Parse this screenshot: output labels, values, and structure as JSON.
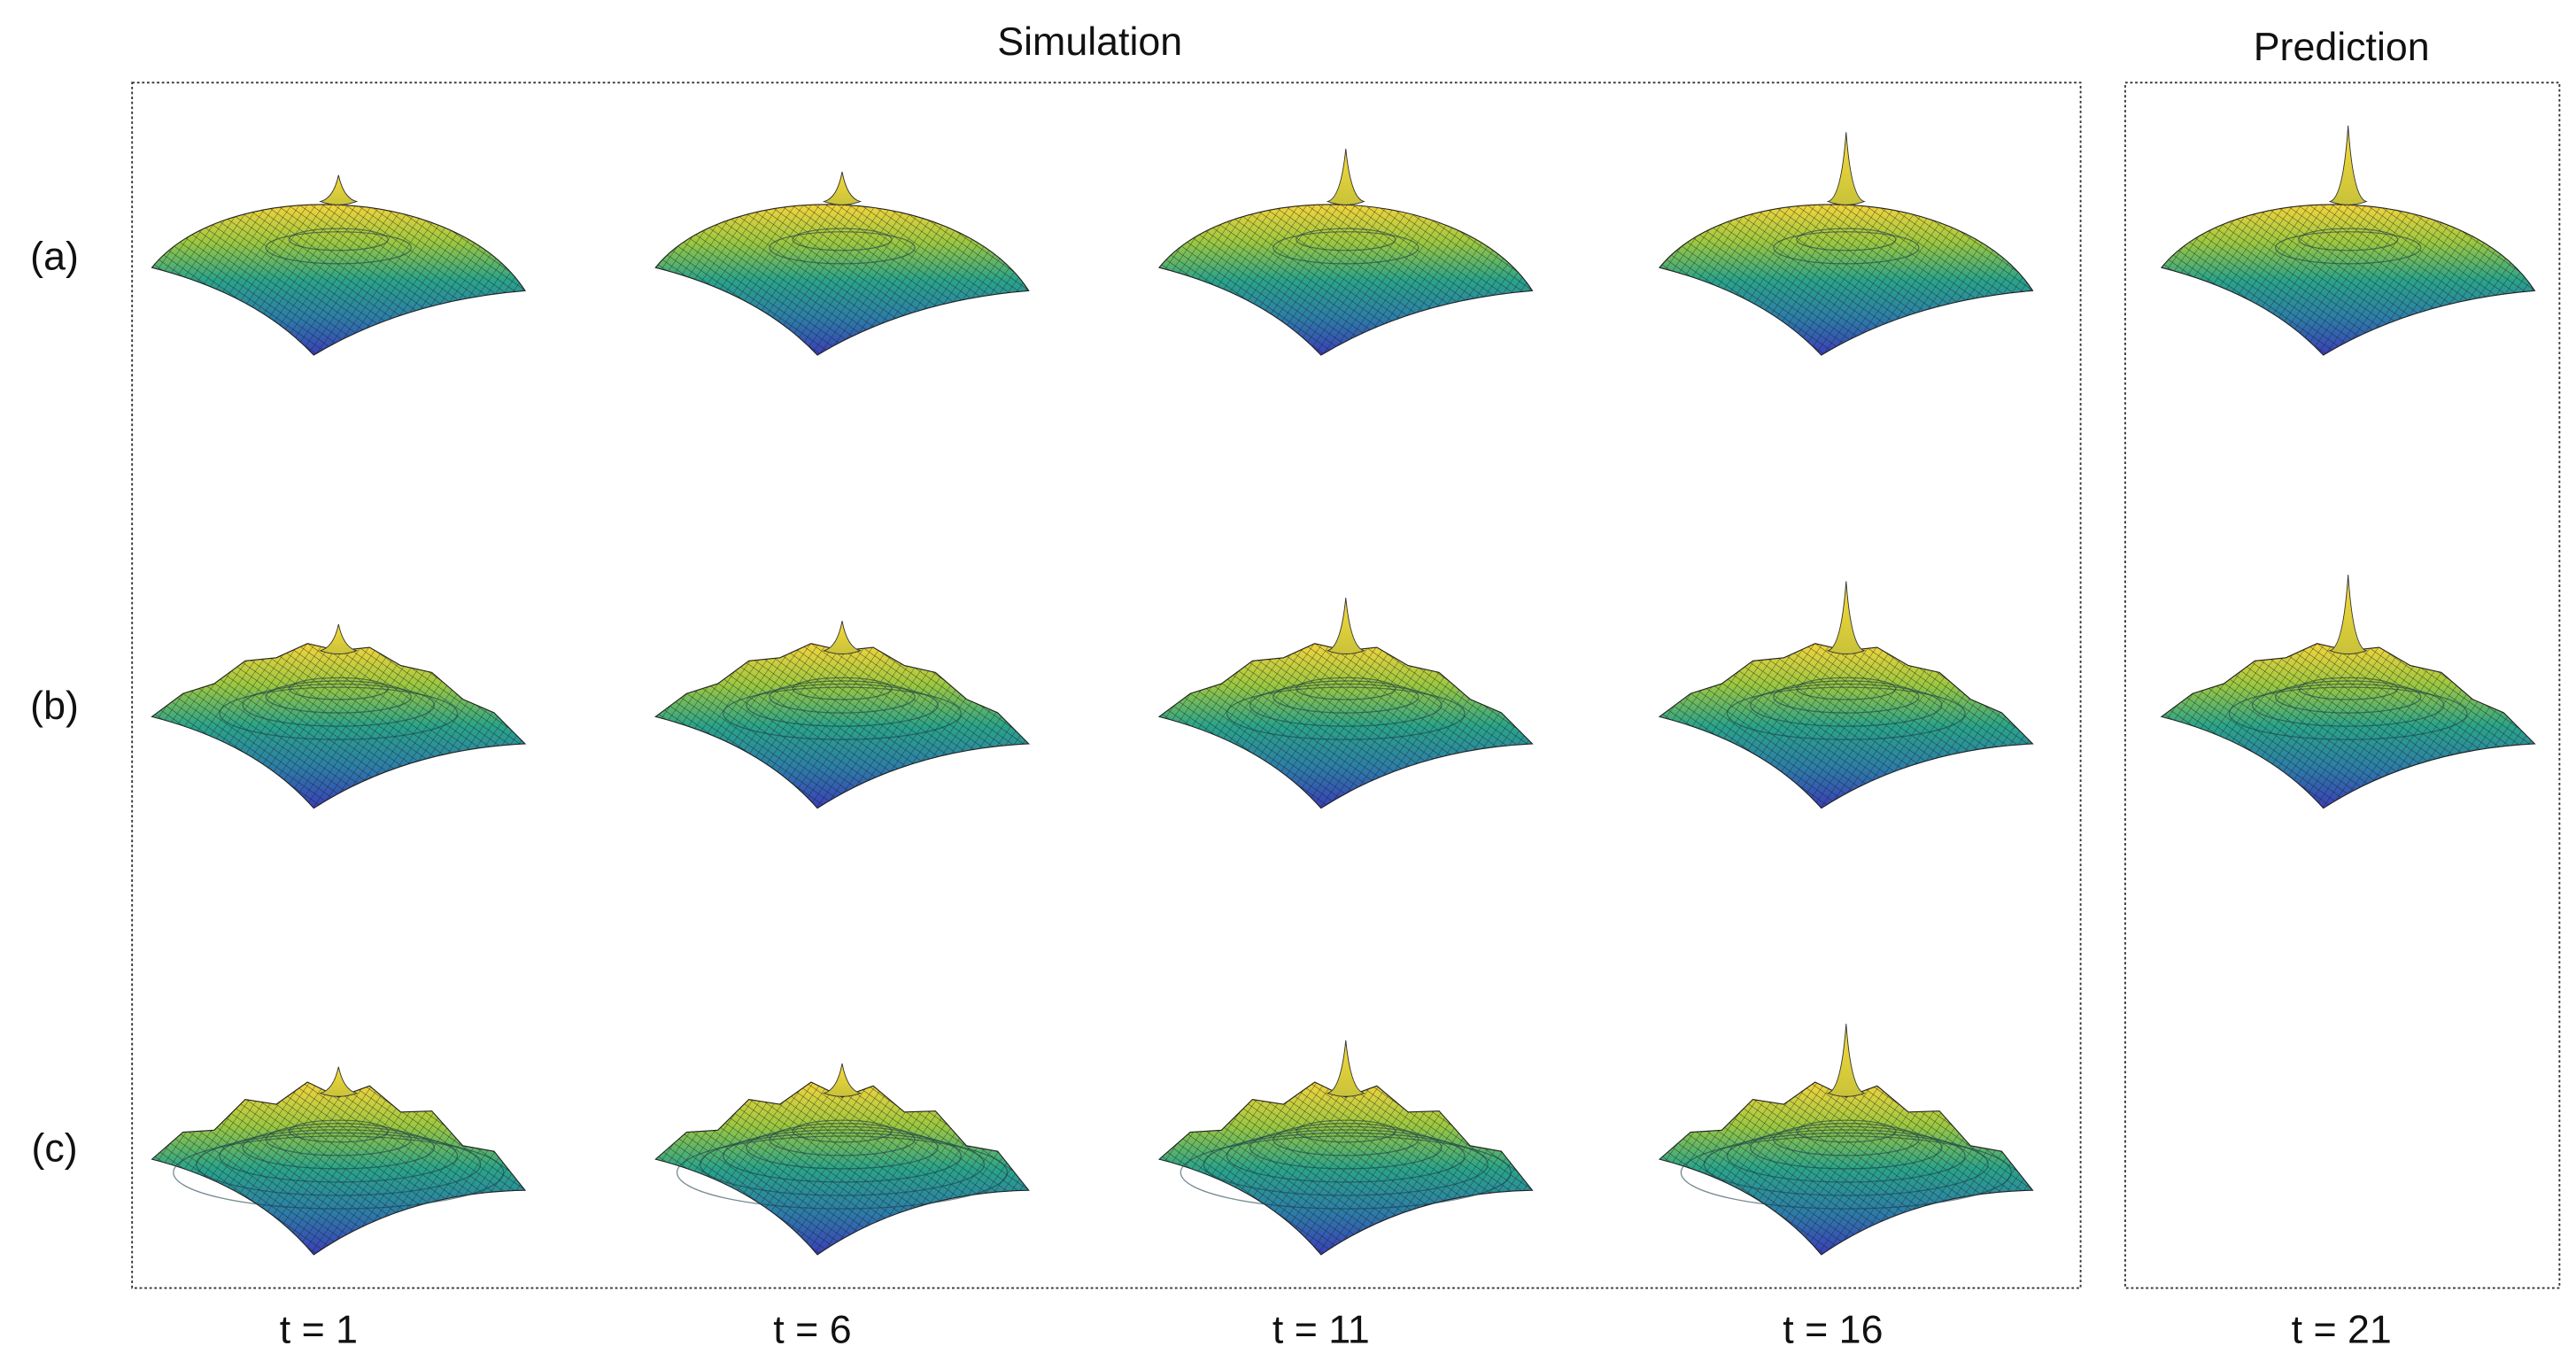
{
  "simulation_title": "Simulation",
  "prediction_title": "Prediction",
  "rows": [
    "(a)",
    "(b)",
    "(c)"
  ],
  "columns": [
    "t = 1",
    "t = 6",
    "t = 11",
    "t = 16",
    "t = 21"
  ]
}
